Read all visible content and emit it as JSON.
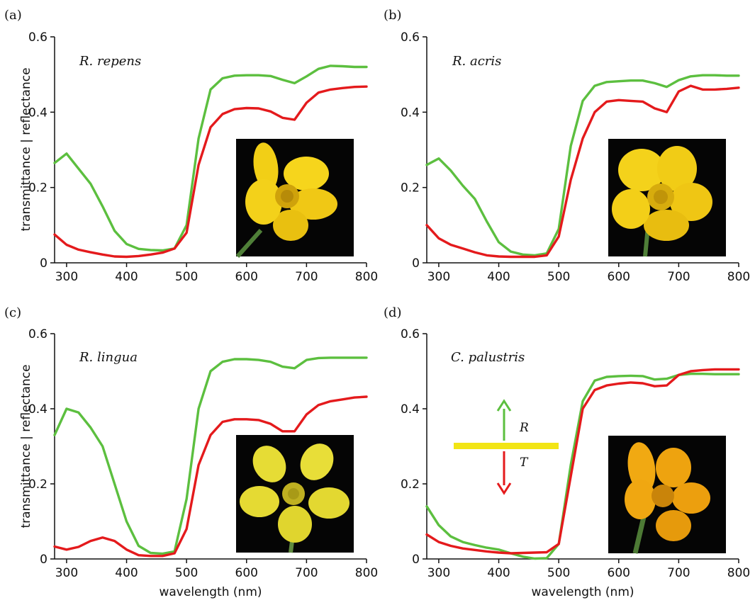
{
  "figure": {
    "ylabel": "transmittance | reflectance",
    "xlabel": "wavelength (nm)",
    "colors": {
      "transmittance": "#e41a1c",
      "reflectance": "#5cbf3f",
      "axis": "#111111",
      "leaf": "#f2e515",
      "photo_bg": "#050505"
    }
  },
  "chart_data": [
    {
      "type": "line",
      "panel": "(a)",
      "species": "R. repens",
      "xlim": [
        280,
        800
      ],
      "ylim": [
        0,
        0.6
      ],
      "xticks": [
        300,
        400,
        500,
        600,
        700,
        800
      ],
      "yticks": [
        0,
        0.2,
        0.4,
        0.6
      ],
      "ylabel": "transmittance | reflectance",
      "xlabel": "",
      "photo": "yellow-buttercup-photo",
      "series": [
        {
          "color": "green",
          "x": [
            280,
            300,
            320,
            340,
            360,
            380,
            400,
            420,
            440,
            460,
            480,
            500,
            520,
            540,
            560,
            580,
            600,
            620,
            640,
            660,
            680,
            700,
            720,
            740,
            760,
            780,
            800
          ],
          "y": [
            0.265,
            0.29,
            0.25,
            0.21,
            0.15,
            0.085,
            0.05,
            0.037,
            0.034,
            0.033,
            0.038,
            0.1,
            0.33,
            0.46,
            0.49,
            0.497,
            0.498,
            0.498,
            0.496,
            0.486,
            0.477,
            0.495,
            0.515,
            0.523,
            0.522,
            0.52,
            0.52
          ]
        },
        {
          "color": "red",
          "x": [
            280,
            300,
            320,
            340,
            360,
            380,
            400,
            420,
            440,
            460,
            480,
            500,
            520,
            540,
            560,
            580,
            600,
            620,
            640,
            660,
            680,
            700,
            720,
            740,
            760,
            780,
            800
          ],
          "y": [
            0.075,
            0.048,
            0.035,
            0.028,
            0.022,
            0.017,
            0.016,
            0.018,
            0.022,
            0.027,
            0.038,
            0.08,
            0.26,
            0.36,
            0.395,
            0.408,
            0.411,
            0.41,
            0.402,
            0.385,
            0.38,
            0.425,
            0.452,
            0.46,
            0.464,
            0.467,
            0.468
          ]
        }
      ]
    },
    {
      "type": "line",
      "panel": "(b)",
      "species": "R. acris",
      "xlim": [
        280,
        800
      ],
      "ylim": [
        0,
        0.6
      ],
      "xticks": [
        300,
        400,
        500,
        600,
        700,
        800
      ],
      "yticks": [
        0,
        0.2,
        0.4,
        0.6
      ],
      "ylabel": "",
      "xlabel": "",
      "photo": "yellow-buttercup-photo",
      "series": [
        {
          "color": "green",
          "x": [
            280,
            300,
            320,
            340,
            360,
            380,
            400,
            420,
            440,
            460,
            480,
            500,
            520,
            540,
            560,
            580,
            600,
            620,
            640,
            660,
            680,
            700,
            720,
            740,
            760,
            780,
            800
          ],
          "y": [
            0.26,
            0.277,
            0.245,
            0.205,
            0.17,
            0.11,
            0.055,
            0.03,
            0.022,
            0.02,
            0.025,
            0.09,
            0.31,
            0.43,
            0.47,
            0.48,
            0.482,
            0.484,
            0.484,
            0.477,
            0.467,
            0.485,
            0.495,
            0.498,
            0.498,
            0.497,
            0.497
          ]
        },
        {
          "color": "red",
          "x": [
            280,
            300,
            320,
            340,
            360,
            380,
            400,
            420,
            440,
            460,
            480,
            500,
            520,
            540,
            560,
            580,
            600,
            620,
            640,
            660,
            680,
            700,
            720,
            740,
            760,
            780,
            800
          ],
          "y": [
            0.1,
            0.065,
            0.048,
            0.038,
            0.028,
            0.02,
            0.017,
            0.016,
            0.016,
            0.016,
            0.02,
            0.07,
            0.22,
            0.33,
            0.4,
            0.428,
            0.432,
            0.43,
            0.428,
            0.41,
            0.4,
            0.455,
            0.47,
            0.46,
            0.46,
            0.462,
            0.465
          ]
        }
      ]
    },
    {
      "type": "line",
      "panel": "(c)",
      "species": "R. lingua",
      "xlim": [
        280,
        800
      ],
      "ylim": [
        0,
        0.6
      ],
      "xticks": [
        300,
        400,
        500,
        600,
        700,
        800
      ],
      "yticks": [
        0,
        0.2,
        0.4,
        0.6
      ],
      "ylabel": "transmittance | reflectance",
      "xlabel": "wavelength (nm)",
      "photo": "yellow-buttercup-photo",
      "series": [
        {
          "color": "green",
          "x": [
            280,
            300,
            320,
            340,
            360,
            380,
            400,
            420,
            440,
            460,
            480,
            500,
            520,
            540,
            560,
            580,
            600,
            620,
            640,
            660,
            680,
            700,
            720,
            740,
            760,
            780,
            800
          ],
          "y": [
            0.33,
            0.4,
            0.39,
            0.35,
            0.3,
            0.2,
            0.1,
            0.035,
            0.016,
            0.014,
            0.02,
            0.16,
            0.4,
            0.5,
            0.525,
            0.532,
            0.532,
            0.53,
            0.525,
            0.512,
            0.508,
            0.53,
            0.535,
            0.536,
            0.536,
            0.536,
            0.536
          ]
        },
        {
          "color": "red",
          "x": [
            280,
            300,
            320,
            340,
            360,
            380,
            400,
            420,
            440,
            460,
            480,
            500,
            520,
            540,
            560,
            580,
            600,
            620,
            640,
            660,
            680,
            700,
            720,
            740,
            760,
            780,
            800
          ],
          "y": [
            0.033,
            0.025,
            0.032,
            0.048,
            0.057,
            0.048,
            0.025,
            0.01,
            0.008,
            0.008,
            0.015,
            0.08,
            0.25,
            0.33,
            0.365,
            0.372,
            0.372,
            0.37,
            0.36,
            0.34,
            0.34,
            0.385,
            0.41,
            0.42,
            0.425,
            0.43,
            0.432
          ]
        }
      ]
    },
    {
      "type": "line",
      "panel": "(d)",
      "species": "C. palustris",
      "xlim": [
        280,
        800
      ],
      "ylim": [
        0,
        0.6
      ],
      "xticks": [
        300,
        400,
        500,
        600,
        700,
        800
      ],
      "yticks": [
        0,
        0.2,
        0.4,
        0.6
      ],
      "ylabel": "",
      "xlabel": "wavelength (nm)",
      "photo": "yellow-marsh-marigold-photo",
      "legend": {
        "upper": "R",
        "lower": "T"
      },
      "series": [
        {
          "color": "green",
          "x": [
            280,
            300,
            320,
            340,
            360,
            380,
            400,
            420,
            440,
            460,
            480,
            500,
            520,
            540,
            560,
            580,
            600,
            620,
            640,
            660,
            680,
            700,
            720,
            740,
            760,
            780,
            800
          ],
          "y": [
            0.14,
            0.09,
            0.06,
            0.045,
            0.037,
            0.03,
            0.025,
            0.015,
            0.006,
            0.001,
            0.002,
            0.04,
            0.25,
            0.42,
            0.475,
            0.485,
            0.487,
            0.488,
            0.487,
            0.478,
            0.48,
            0.49,
            0.493,
            0.493,
            0.492,
            0.492,
            0.492
          ]
        },
        {
          "color": "red",
          "x": [
            280,
            300,
            320,
            340,
            360,
            380,
            400,
            420,
            440,
            460,
            480,
            500,
            520,
            540,
            560,
            580,
            600,
            620,
            640,
            660,
            680,
            700,
            720,
            740,
            760,
            780,
            800
          ],
          "y": [
            0.065,
            0.045,
            0.035,
            0.028,
            0.024,
            0.02,
            0.017,
            0.015,
            0.016,
            0.017,
            0.018,
            0.04,
            0.22,
            0.4,
            0.45,
            0.462,
            0.467,
            0.47,
            0.468,
            0.46,
            0.462,
            0.49,
            0.5,
            0.503,
            0.505,
            0.505,
            0.505
          ]
        }
      ]
    }
  ]
}
